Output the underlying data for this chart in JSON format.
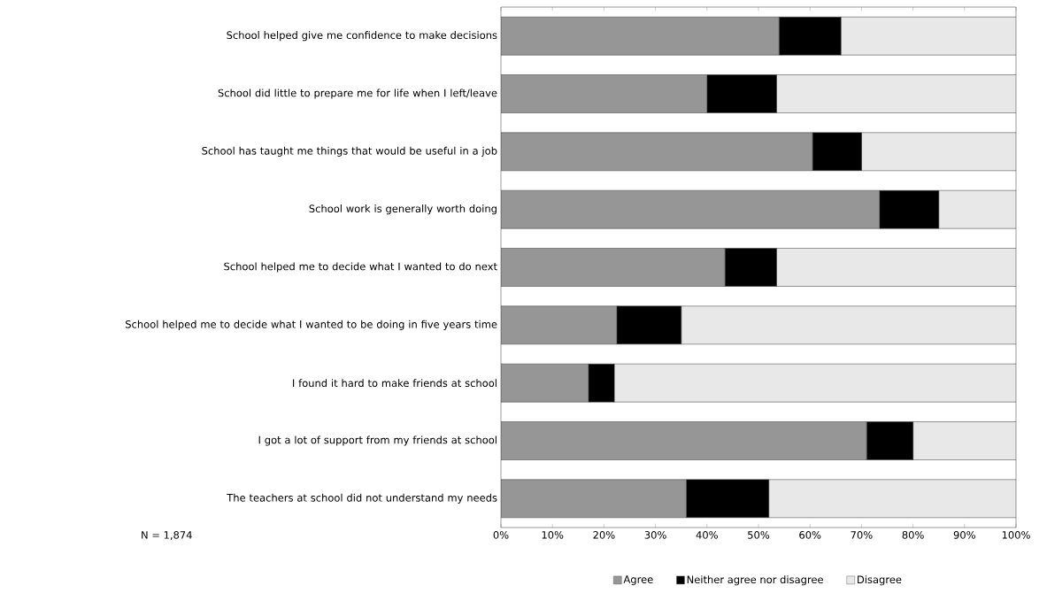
{
  "chart_data": {
    "type": "bar",
    "orientation": "horizontal",
    "stacked": true,
    "categories": [
      "School helped give me confidence to make decisions",
      "School did little to prepare me for life when I left/leave",
      "School has taught me things that would be useful in a job",
      "School work is generally worth doing",
      "School helped me to decide what I wanted to do next",
      "School helped me to decide what I wanted to be doing in five years time",
      "I found it hard to make friends at school",
      "I got a lot of support from my friends at school",
      "The teachers at school did not understand my needs"
    ],
    "series": [
      {
        "name": "Agree",
        "color": "#969696",
        "values": [
          54,
          40,
          60.5,
          73.5,
          43.5,
          22.5,
          17,
          71,
          36
        ]
      },
      {
        "name": "Neither agree nor disagree",
        "color": "#000000",
        "values": [
          12,
          13.5,
          9.5,
          11.5,
          10,
          12.5,
          5,
          9,
          16
        ]
      },
      {
        "name": "Disagree",
        "color": "#e8e8e8",
        "values": [
          34,
          46.5,
          30,
          15,
          46.5,
          65,
          78,
          20,
          48
        ]
      }
    ],
    "xlim": [
      0,
      100
    ],
    "xticks": [
      {
        "value": 0,
        "label": "0%"
      },
      {
        "value": 10,
        "label": "10%"
      },
      {
        "value": 20,
        "label": "20%"
      },
      {
        "value": 30,
        "label": "30%"
      },
      {
        "value": 40,
        "label": "40%"
      },
      {
        "value": 50,
        "label": "50%"
      },
      {
        "value": 60,
        "label": "60%"
      },
      {
        "value": 70,
        "label": "70%"
      },
      {
        "value": 80,
        "label": "80%"
      },
      {
        "value": 90,
        "label": "90%"
      },
      {
        "value": 100,
        "label": "100%"
      }
    ],
    "legend": "bottom",
    "annotations": [
      "N = 1,874"
    ]
  }
}
